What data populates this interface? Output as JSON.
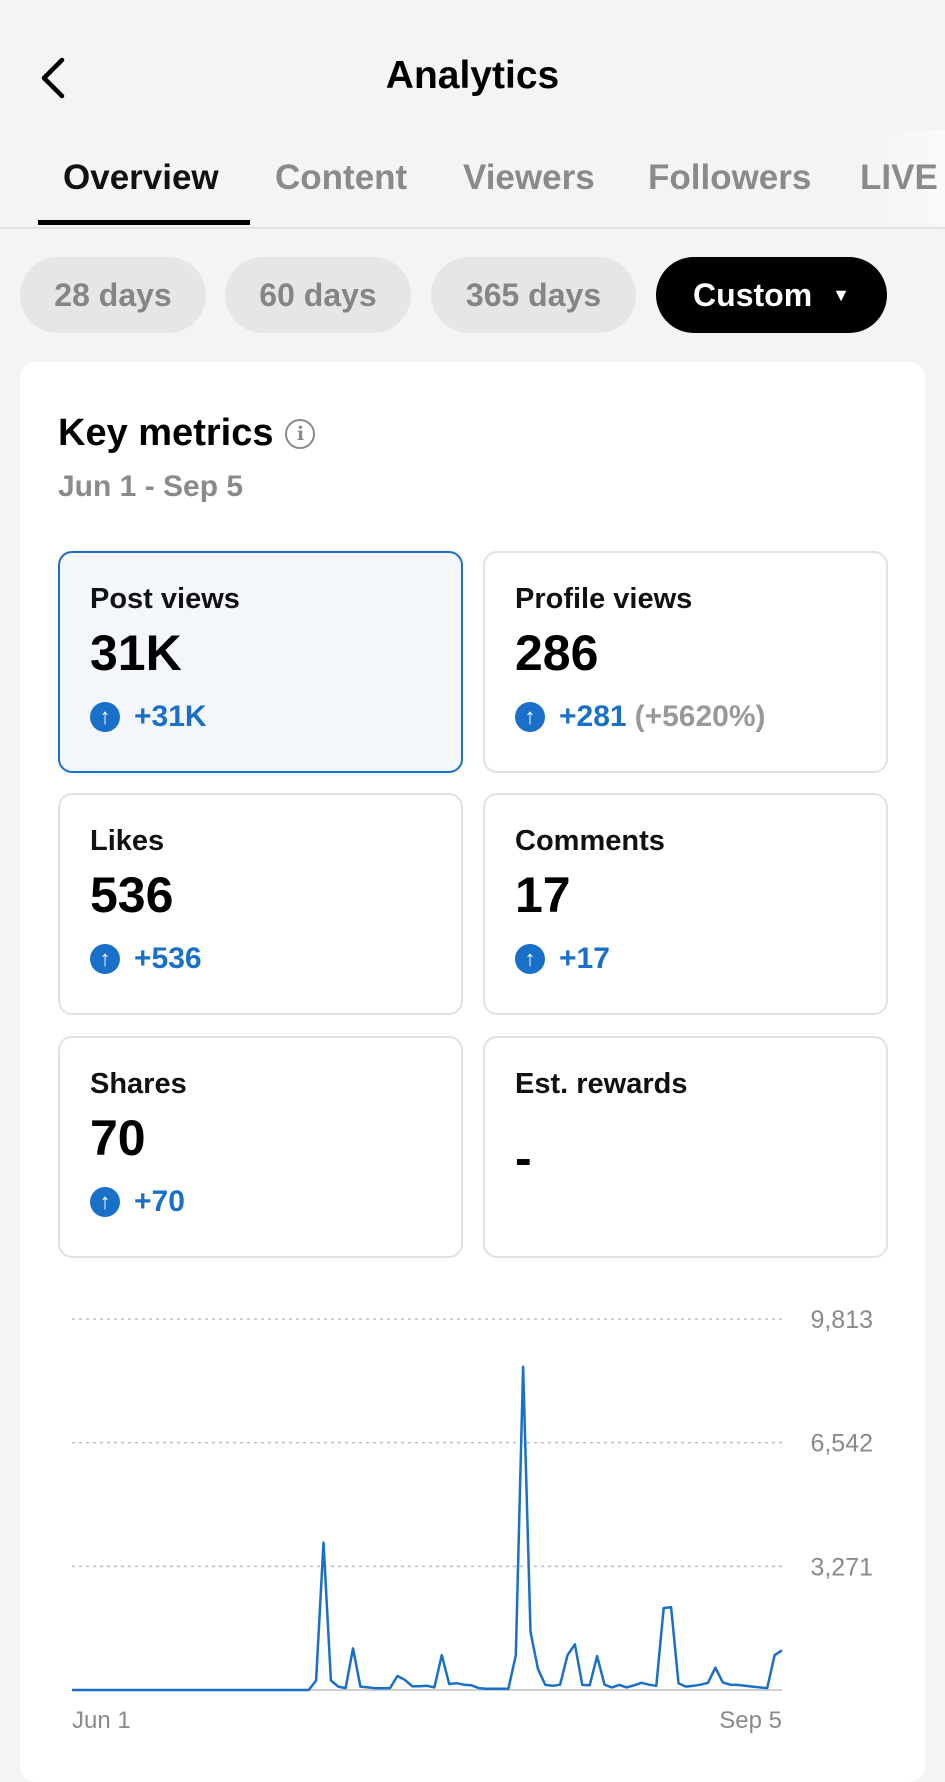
{
  "header": {
    "title": "Analytics",
    "back_icon": "chevron-left-icon"
  },
  "tabs": [
    {
      "label": "Overview",
      "active": true
    },
    {
      "label": "Content"
    },
    {
      "label": "Viewers"
    },
    {
      "label": "Followers"
    },
    {
      "label": "LIVE"
    }
  ],
  "ranges": [
    {
      "label": "28 days"
    },
    {
      "label": "60 days"
    },
    {
      "label": "365 days"
    },
    {
      "label": "Custom",
      "selected": true,
      "caret": "▼"
    }
  ],
  "key_metrics": {
    "title": "Key metrics",
    "info_icon": "i",
    "date_range": "Jun 1 - Sep 5"
  },
  "metrics": [
    {
      "label": "Post views",
      "value": "31K",
      "change": "+31K",
      "selected": true
    },
    {
      "label": "Profile views",
      "value": "286",
      "change": "+281",
      "pct": "(+5620%)"
    },
    {
      "label": "Likes",
      "value": "536",
      "change": "+536"
    },
    {
      "label": "Comments",
      "value": "17",
      "change": "+17"
    },
    {
      "label": "Shares",
      "value": "70",
      "change": "+70"
    },
    {
      "label": "Est. rewards",
      "value": "-"
    }
  ],
  "colors": {
    "accent": "#1a6fc9",
    "selected_bg": "#f3f7fc"
  },
  "chart_data": {
    "type": "line",
    "series_name": "Post views",
    "x_start": "Jun 1",
    "x_end": "Sep 5",
    "x_labels": [
      "Jun 1",
      "Sep 5"
    ],
    "y_ticks": [
      {
        "value": 9813,
        "label": "9,813"
      },
      {
        "value": 6542,
        "label": "6,542"
      },
      {
        "value": 3271,
        "label": "3,271"
      }
    ],
    "ylim": [
      0,
      9813
    ],
    "grid": true,
    "values": [
      0,
      0,
      0,
      0,
      0,
      0,
      0,
      0,
      0,
      0,
      0,
      0,
      0,
      0,
      0,
      0,
      0,
      0,
      0,
      0,
      0,
      0,
      0,
      0,
      0,
      0,
      0,
      0,
      0,
      0,
      0,
      0,
      0,
      250,
      3900,
      250,
      90,
      50,
      1100,
      90,
      70,
      45,
      45,
      50,
      370,
      270,
      100,
      100,
      110,
      70,
      920,
      160,
      180,
      140,
      125,
      50,
      35,
      35,
      35,
      35,
      920,
      8550,
      1540,
      560,
      135,
      110,
      140,
      920,
      1210,
      135,
      125,
      900,
      140,
      70,
      135,
      70,
      125,
      190,
      140,
      110,
      2170,
      2190,
      180,
      90,
      110,
      140,
      190,
      590,
      200,
      140,
      135,
      110,
      90,
      70,
      50,
      920,
      1050
    ]
  }
}
